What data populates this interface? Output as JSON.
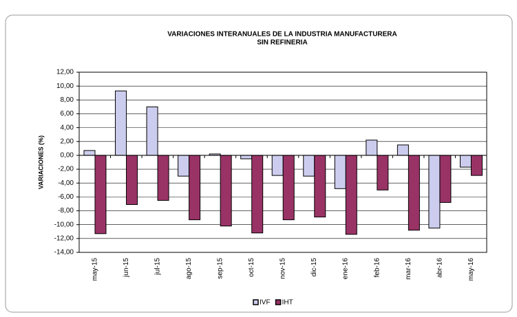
{
  "chart_data": {
    "type": "bar",
    "title": "VARIACIONES INTERANUALES DE LA INDUSTRIA MANUFACTURERA",
    "subtitle": "SIN REFINERIA",
    "y_label": "VARIACIONES (%)",
    "categories": [
      "may-15",
      "jun-15",
      "jul-15",
      "ago-15",
      "sep-15",
      "oct-15",
      "nov-15",
      "dic-15",
      "ene-16",
      "feb-16",
      "mar-16",
      "abr-16",
      "may-16"
    ],
    "series": [
      {
        "name": "IVF",
        "color": "#ccccee",
        "values": [
          0.7,
          9.3,
          7.0,
          -3.0,
          0.2,
          -0.5,
          -2.9,
          -3.0,
          -4.8,
          2.2,
          1.5,
          -10.5,
          -1.7
        ]
      },
      {
        "name": "IHT",
        "color": "#993366",
        "values": [
          -11.3,
          -7.1,
          -6.5,
          -9.3,
          -10.2,
          -11.2,
          -9.3,
          -8.9,
          -11.4,
          -5.0,
          -10.8,
          -6.8,
          -2.9
        ]
      }
    ],
    "ylim": [
      -14,
      12
    ],
    "yticks": [
      {
        "value": -14,
        "label": "-14,00"
      },
      {
        "value": -12,
        "label": "-12,00"
      },
      {
        "value": -10,
        "label": "-10,00"
      },
      {
        "value": -8,
        "label": "-8,00"
      },
      {
        "value": -6,
        "label": "-6,00"
      },
      {
        "value": -4,
        "label": "-4,00"
      },
      {
        "value": -2,
        "label": "-2,00"
      },
      {
        "value": 0,
        "label": "0,00"
      },
      {
        "value": 2,
        "label": "2,00"
      },
      {
        "value": 4,
        "label": "4,00"
      },
      {
        "value": 6,
        "label": "6,00"
      },
      {
        "value": 8,
        "label": "8,00"
      },
      {
        "value": 10,
        "label": "10,00"
      },
      {
        "value": 12,
        "label": "12,00"
      }
    ],
    "grid": true,
    "legend": "bottom"
  }
}
